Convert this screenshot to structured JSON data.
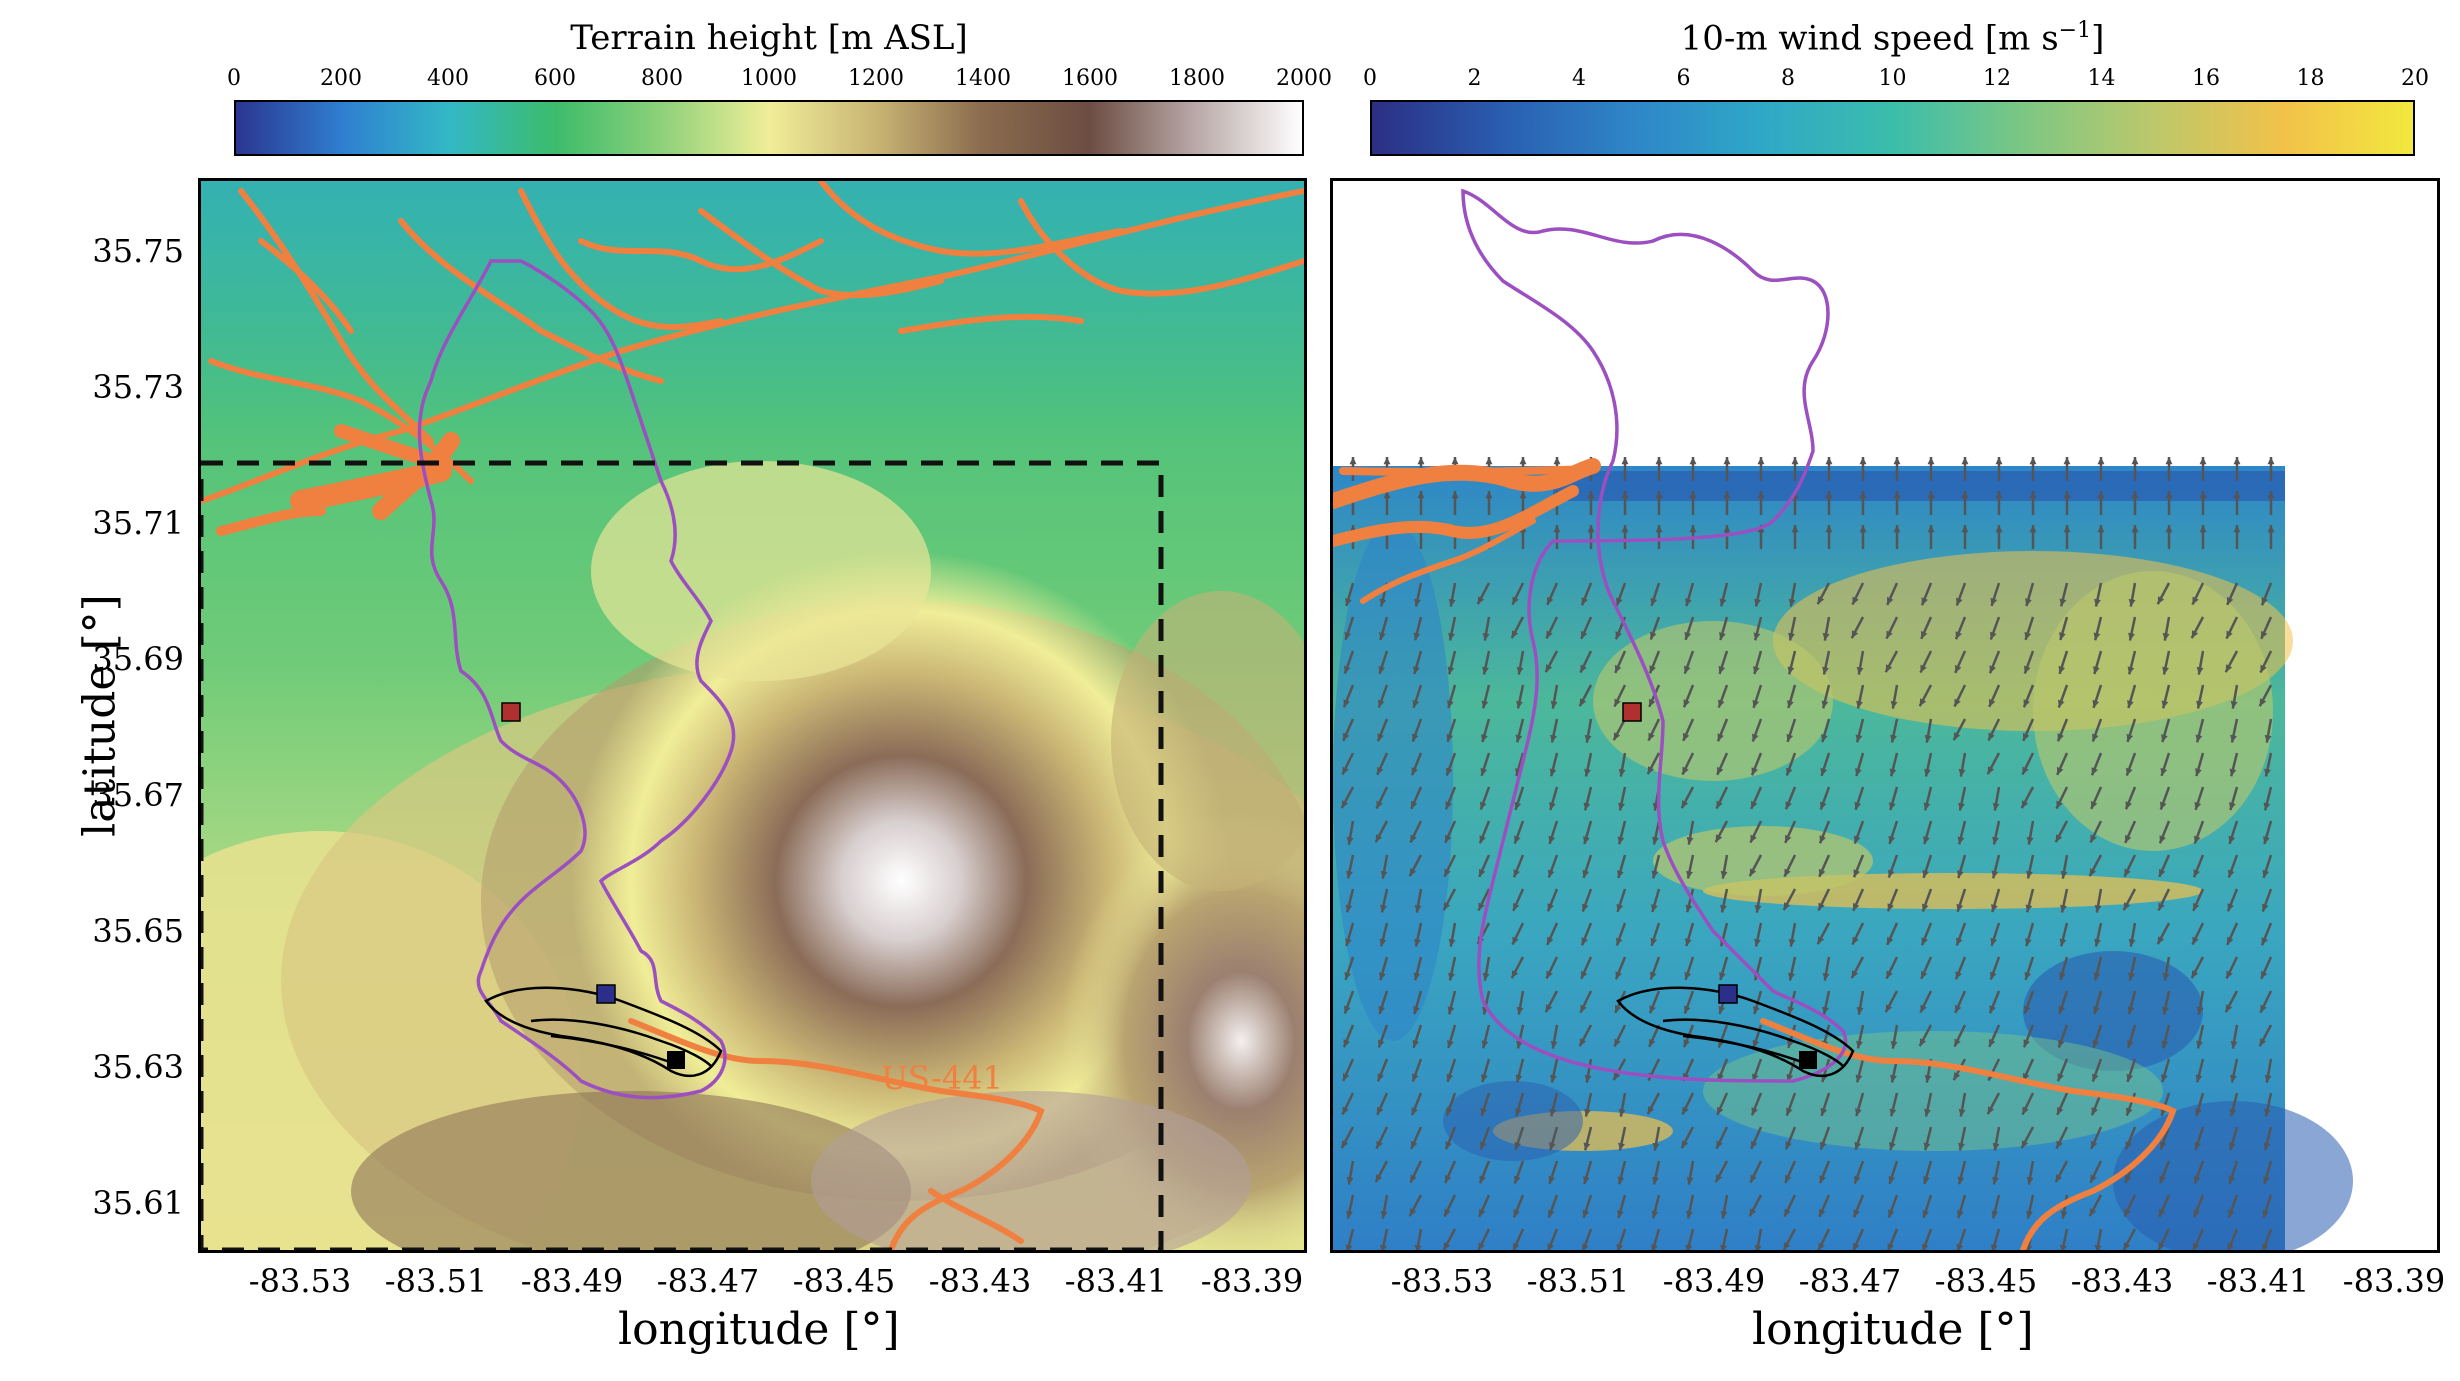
{
  "left_panel": {
    "colorbar": {
      "title": "Terrain height [m ASL]",
      "ticks": [
        "0",
        "200",
        "400",
        "600",
        "800",
        "1000",
        "1200",
        "1400",
        "1600",
        "1800",
        "2000"
      ],
      "colors": [
        "#2b3691",
        "#2f7fd0",
        "#33b8c6",
        "#3cbc6b",
        "#8fd17a",
        "#f0ee98",
        "#c9b474",
        "#8a6c4e",
        "#6c4d42",
        "#b9a9a8",
        "#ffffff"
      ]
    },
    "road_label": "US-441"
  },
  "right_panel": {
    "colorbar": {
      "title": "10-m wind speed [m s",
      "title_sup": "−1",
      "title_end": "]",
      "ticks": [
        "0",
        "2",
        "4",
        "6",
        "8",
        "10",
        "12",
        "14",
        "16",
        "18",
        "20"
      ],
      "colors": [
        "#2b2f84",
        "#2a5db0",
        "#2e86c8",
        "#2fa8c7",
        "#3bbdab",
        "#7cc784",
        "#bcc86b",
        "#f2c14a",
        "#f2e83e"
      ]
    }
  },
  "axes": {
    "latitude_ticks": [
      "35.75",
      "35.73",
      "35.71",
      "35.69",
      "35.67",
      "35.65",
      "35.63",
      "35.61"
    ],
    "longitude_ticks": [
      "-83.53",
      "-83.51",
      "-83.49",
      "-83.47",
      "-83.45",
      "-83.43",
      "-83.41",
      "-83.39"
    ],
    "ylabel": "latitude [°]",
    "xlabel": "longitude [°]"
  },
  "colors": {
    "roads": "#f08040",
    "boundary": "#9b4fc0",
    "red_marker": "#b03030",
    "blue_marker": "#2b2f8a",
    "dashed_box": "#111111",
    "wind_arrow": "#555555"
  }
}
